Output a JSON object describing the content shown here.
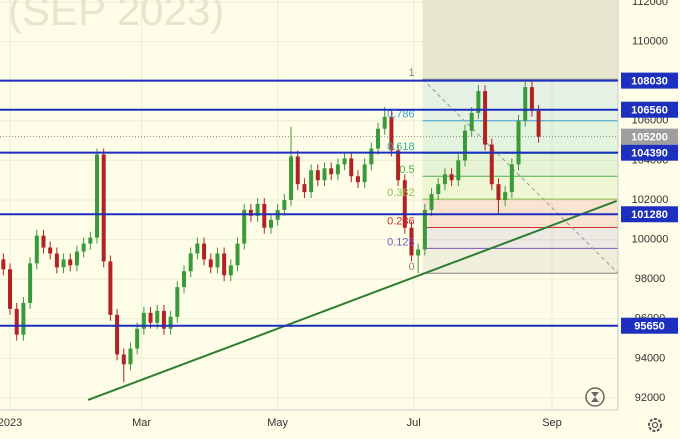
{
  "chart_data": {
    "type": "candlestick",
    "title": "(SEP 2023)",
    "x": [
      -3,
      0,
      3,
      6,
      9,
      12,
      15,
      18,
      21,
      24,
      27,
      30,
      33,
      36,
      39,
      42,
      45,
      48,
      51,
      54,
      57,
      60,
      63,
      66,
      69,
      72,
      75,
      78,
      81,
      84,
      87,
      90,
      93,
      96,
      99,
      102,
      105,
      108,
      111,
      114,
      117,
      120,
      123,
      126,
      129,
      132,
      135,
      138,
      141,
      144,
      147,
      150,
      153,
      156,
      159,
      162,
      165,
      168,
      171,
      174,
      177,
      180,
      183,
      186,
      189,
      192,
      195,
      198,
      201,
      204,
      207,
      210,
      213,
      216,
      219,
      222,
      225,
      228,
      231,
      234,
      237
    ],
    "open": [
      99000,
      98500,
      96500,
      95200,
      96800,
      98800,
      100200,
      99600,
      99300,
      98600,
      99000,
      98700,
      99400,
      99800,
      100100,
      104300,
      98900,
      96200,
      94200,
      93700,
      94500,
      95500,
      96300,
      95800,
      96400,
      95500,
      96100,
      97600,
      98400,
      99300,
      99800,
      99000,
      98600,
      99300,
      98200,
      98700,
      99800,
      101500,
      101200,
      101800,
      100600,
      101000,
      101500,
      102000,
      104200,
      102800,
      102400,
      103500,
      103000,
      103600,
      103300,
      103800,
      104100,
      103200,
      102900,
      103800,
      104600,
      105600,
      106200,
      104500,
      103000,
      100600,
      99200,
      99500,
      101500,
      102300,
      102800,
      103300,
      103000,
      104000,
      105500,
      106400,
      107500,
      104800,
      102800,
      102000,
      102400,
      103800,
      106000,
      107700,
      106500
    ],
    "high": [
      99300,
      98800,
      96800,
      97100,
      99100,
      100500,
      100500,
      99900,
      99600,
      99300,
      99300,
      99700,
      100100,
      100400,
      104600,
      104600,
      99200,
      96500,
      94500,
      94800,
      95800,
      96600,
      96600,
      96700,
      96700,
      96400,
      97900,
      98700,
      99600,
      100100,
      100100,
      99300,
      99600,
      99600,
      99000,
      100100,
      101800,
      101800,
      102100,
      102100,
      101300,
      101800,
      102300,
      105700,
      104500,
      103100,
      103800,
      103800,
      103900,
      103900,
      104100,
      104400,
      104400,
      103500,
      104100,
      104900,
      105900,
      106700,
      106500,
      104800,
      103300,
      100900,
      99800,
      101800,
      102600,
      103100,
      103600,
      103600,
      104300,
      105800,
      106700,
      107800,
      107800,
      105100,
      103100,
      102700,
      104100,
      106300,
      108000,
      108000,
      106800
    ],
    "low": [
      98200,
      96200,
      94900,
      94900,
      96500,
      98500,
      99300,
      99000,
      98300,
      98300,
      98400,
      98400,
      99100,
      99500,
      99800,
      98600,
      95900,
      93900,
      92800,
      93400,
      94200,
      95200,
      95500,
      95500,
      95200,
      95200,
      95800,
      97300,
      98100,
      99000,
      98700,
      98300,
      98300,
      97900,
      97900,
      98400,
      99500,
      100900,
      100900,
      100300,
      100300,
      100700,
      101200,
      101700,
      102500,
      102100,
      102100,
      102700,
      102700,
      103000,
      103000,
      103500,
      102900,
      102600,
      102600,
      103500,
      104300,
      105300,
      104200,
      102700,
      100300,
      98900,
      98300,
      99200,
      101200,
      102000,
      102500,
      102700,
      102700,
      103700,
      105200,
      106100,
      104500,
      102500,
      101300,
      101700,
      102100,
      103500,
      105700,
      106200,
      104900
    ],
    "close": [
      98500,
      96500,
      95200,
      96800,
      98800,
      100200,
      99600,
      99300,
      98600,
      99000,
      98700,
      99400,
      99800,
      100100,
      104300,
      98900,
      96200,
      94200,
      93700,
      94500,
      95500,
      96300,
      95800,
      96400,
      95500,
      96100,
      97600,
      98400,
      99300,
      99800,
      99000,
      98600,
      99300,
      98200,
      98700,
      99800,
      101500,
      101200,
      101800,
      100600,
      101000,
      101500,
      102000,
      104200,
      102800,
      102400,
      103500,
      103000,
      103600,
      103300,
      103800,
      104100,
      103200,
      102900,
      103800,
      104600,
      105600,
      106200,
      104500,
      103000,
      100600,
      99200,
      99500,
      101500,
      102300,
      102800,
      103300,
      103000,
      104000,
      105500,
      106400,
      107500,
      104800,
      102800,
      102000,
      102400,
      103800,
      106000,
      107700,
      106500,
      105200
    ],
    "up_color": "#3a9a3a",
    "down_color": "#b22222",
    "levels": [
      108030,
      106560,
      104390,
      101280,
      95650
    ],
    "level_color": "#1c2fbf",
    "last_price": 105200,
    "fib": {
      "low": 98300,
      "high": 108100,
      "x_start": 185,
      "levels": [
        1,
        0.786,
        0.618,
        0.5,
        0.382,
        0.236,
        0.128,
        0
      ],
      "colors": [
        "#888888",
        "#3aa0d8",
        "#2bb5a0",
        "#4caf50",
        "#8bc34a",
        "#d32f2f",
        "#7e57c2",
        "#888888"
      ]
    },
    "trendline": {
      "x": [
        35,
        272
      ],
      "y": [
        91900,
        101950
      ],
      "color": "#2e7d32"
    },
    "xlim": [
      -4.5,
      272.6
    ],
    "ylim": [
      92000,
      112000
    ],
    "yticks": [
      92000,
      94000,
      96000,
      98000,
      100000,
      102000,
      104000,
      106000,
      108000,
      110000,
      112000
    ],
    "xticks": [
      {
        "value": 0,
        "label": "2023"
      },
      {
        "value": 59,
        "label": "Mar"
      },
      {
        "value": 120,
        "label": "May"
      },
      {
        "value": 181,
        "label": "Jul"
      },
      {
        "value": 243,
        "label": "Sep"
      }
    ],
    "grid": true
  }
}
